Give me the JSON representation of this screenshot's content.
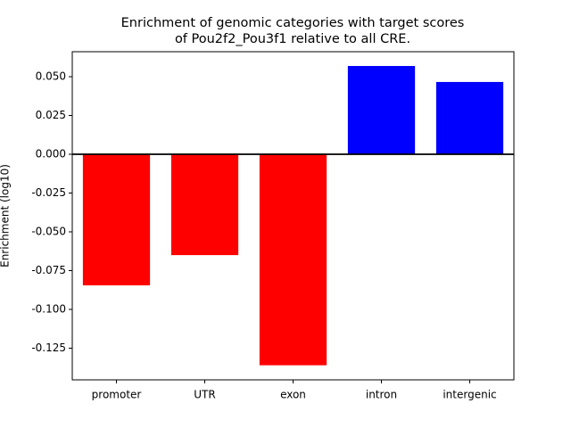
{
  "chart_data": {
    "type": "bar",
    "title": [
      "Enrichment of genomic categories with target scores",
      "of Pou2f2_Pou3f1 relative to all CRE."
    ],
    "y_label": "Enrichment (log10)",
    "categories": [
      "promoter",
      "UTR",
      "exon",
      "intron",
      "intergenic"
    ],
    "values": [
      -0.0845,
      -0.065,
      -0.136,
      0.0569,
      0.0466
    ],
    "colors": [
      "#ff0000",
      "#ff0000",
      "#ff0000",
      "#0000ff",
      "#0000ff"
    ],
    "ylim": [
      -0.1454,
      0.0661
    ],
    "yticks": [
      {
        "value": -0.125,
        "label": "-0.125"
      },
      {
        "value": -0.1,
        "label": "-0.100"
      },
      {
        "value": -0.075,
        "label": "-0.075"
      },
      {
        "value": -0.05,
        "label": "-0.050"
      },
      {
        "value": -0.025,
        "label": "-0.025"
      },
      {
        "value": 0,
        "label": "0.000"
      },
      {
        "value": 0.025,
        "label": "0.025"
      },
      {
        "value": 0.05,
        "label": "0.050"
      }
    ],
    "zero_line": true
  }
}
